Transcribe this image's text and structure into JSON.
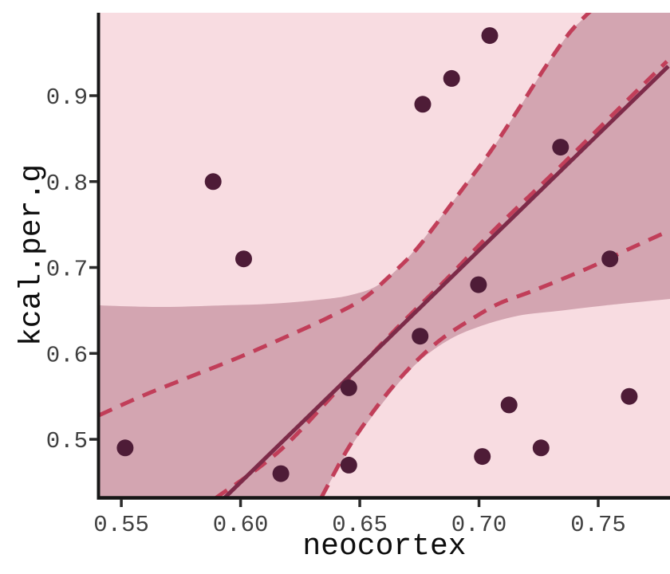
{
  "chart_data": {
    "type": "scatter",
    "title": "",
    "xlabel": "neocortex",
    "ylabel": "kcal.per.g",
    "xlim": [
      0.5406,
      0.7801
    ],
    "ylim": [
      0.4323,
      0.9965
    ],
    "grid": false,
    "legend": "none",
    "x_ticks": [
      0.55,
      0.6,
      0.65,
      0.7,
      0.75
    ],
    "x_tick_labels": [
      "0.55",
      "0.60",
      "0.65",
      "0.70",
      "0.75"
    ],
    "y_ticks": [
      0.5,
      0.6,
      0.7,
      0.8,
      0.9
    ],
    "y_tick_labels": [
      "0.5",
      "0.6",
      "0.7",
      "0.8",
      "0.9"
    ],
    "points": {
      "x": [
        0.5516,
        0.5885,
        0.6013,
        0.6169,
        0.6454,
        0.6454,
        0.6753,
        0.6764,
        0.6885,
        0.6998,
        0.7014,
        0.7045,
        0.7126,
        0.726,
        0.7342,
        0.7549,
        0.763
      ],
      "y": [
        0.49,
        0.8,
        0.71,
        0.46,
        0.56,
        0.47,
        0.62,
        0.89,
        0.92,
        0.68,
        0.48,
        0.97,
        0.54,
        0.49,
        0.84,
        0.71,
        0.55
      ]
    },
    "regression_line": {
      "x1": 0.5931,
      "y1": 0.4313,
      "x2": 0.7794,
      "y2": 0.9343
    },
    "credible_band_polygon": {
      "top": [
        [
          0.5406,
          0.6559
        ],
        [
          0.566,
          0.6541
        ],
        [
          0.5928,
          0.6559
        ],
        [
          0.6129,
          0.6578
        ],
        [
          0.6329,
          0.6624
        ],
        [
          0.6463,
          0.668
        ],
        [
          0.658,
          0.6801
        ],
        [
          0.6697,
          0.7098
        ],
        [
          0.6814,
          0.7497
        ],
        [
          0.6931,
          0.7914
        ],
        [
          0.7048,
          0.835
        ],
        [
          0.7165,
          0.8842
        ],
        [
          0.7283,
          0.9353
        ],
        [
          0.7383,
          0.9742
        ],
        [
          0.7466,
          0.9965
        ]
      ],
      "top_right_corner": [
        0.7801,
        0.9965
      ],
      "right_edge": [
        0.7801,
        0.6634
      ],
      "bottom": [
        [
          0.7801,
          0.6634
        ],
        [
          0.7533,
          0.6559
        ],
        [
          0.7333,
          0.6494
        ],
        [
          0.7165,
          0.6439
        ],
        [
          0.6998,
          0.6309
        ],
        [
          0.6864,
          0.6142
        ],
        [
          0.6731,
          0.5863
        ],
        [
          0.6597,
          0.5427
        ],
        [
          0.6463,
          0.4917
        ],
        [
          0.6339,
          0.4323
        ]
      ],
      "bottom_left_corner": [
        0.5406,
        0.4323
      ]
    },
    "dashed_curves": {
      "outer_upper": [
        [
          0.5406,
          0.5279
        ],
        [
          0.5593,
          0.5511
        ],
        [
          0.5794,
          0.5734
        ],
        [
          0.5995,
          0.5956
        ],
        [
          0.6195,
          0.6198
        ],
        [
          0.6363,
          0.6411
        ],
        [
          0.6513,
          0.6634
        ],
        [
          0.663,
          0.6912
        ],
        [
          0.6731,
          0.719
        ],
        [
          0.6831,
          0.7543
        ],
        [
          0.6931,
          0.7914
        ],
        [
          0.7048,
          0.835
        ],
        [
          0.7165,
          0.8842
        ],
        [
          0.7283,
          0.9353
        ],
        [
          0.7383,
          0.9742
        ],
        [
          0.7474,
          1.0002
        ]
      ],
      "inner": [
        [
          0.5894,
          0.4313
        ],
        [
          0.6162,
          0.4861
        ],
        [
          0.643,
          0.5641
        ],
        [
          0.6664,
          0.6318
        ],
        [
          0.6864,
          0.6866
        ],
        [
          0.7065,
          0.7441
        ],
        [
          0.7333,
          0.8155
        ],
        [
          0.7567,
          0.8796
        ],
        [
          0.7788,
          0.9399
        ]
      ],
      "lower": [
        [
          0.6339,
          0.4323
        ],
        [
          0.6446,
          0.4871
        ],
        [
          0.6547,
          0.5288
        ],
        [
          0.6647,
          0.5641
        ],
        [
          0.6747,
          0.5938
        ],
        [
          0.6848,
          0.6179
        ],
        [
          0.6965,
          0.6392
        ],
        [
          0.7082,
          0.6578
        ],
        [
          0.7216,
          0.6717
        ],
        [
          0.7349,
          0.6866
        ],
        [
          0.7483,
          0.7023
        ],
        [
          0.7617,
          0.72
        ],
        [
          0.7801,
          0.7432
        ]
      ]
    },
    "colors": {
      "outer_bg": "#ffffff",
      "panel_bg": "#f8dce1",
      "band": "#d3a5b1",
      "dashed_line": "#c13e59",
      "regression_line": "#7d2b49",
      "point": "#4e1c37",
      "axis_line": "#161616",
      "tick_mark": "#2b2b2b",
      "tick_label": "#404040",
      "axis_title": "#0d0d0d"
    }
  }
}
